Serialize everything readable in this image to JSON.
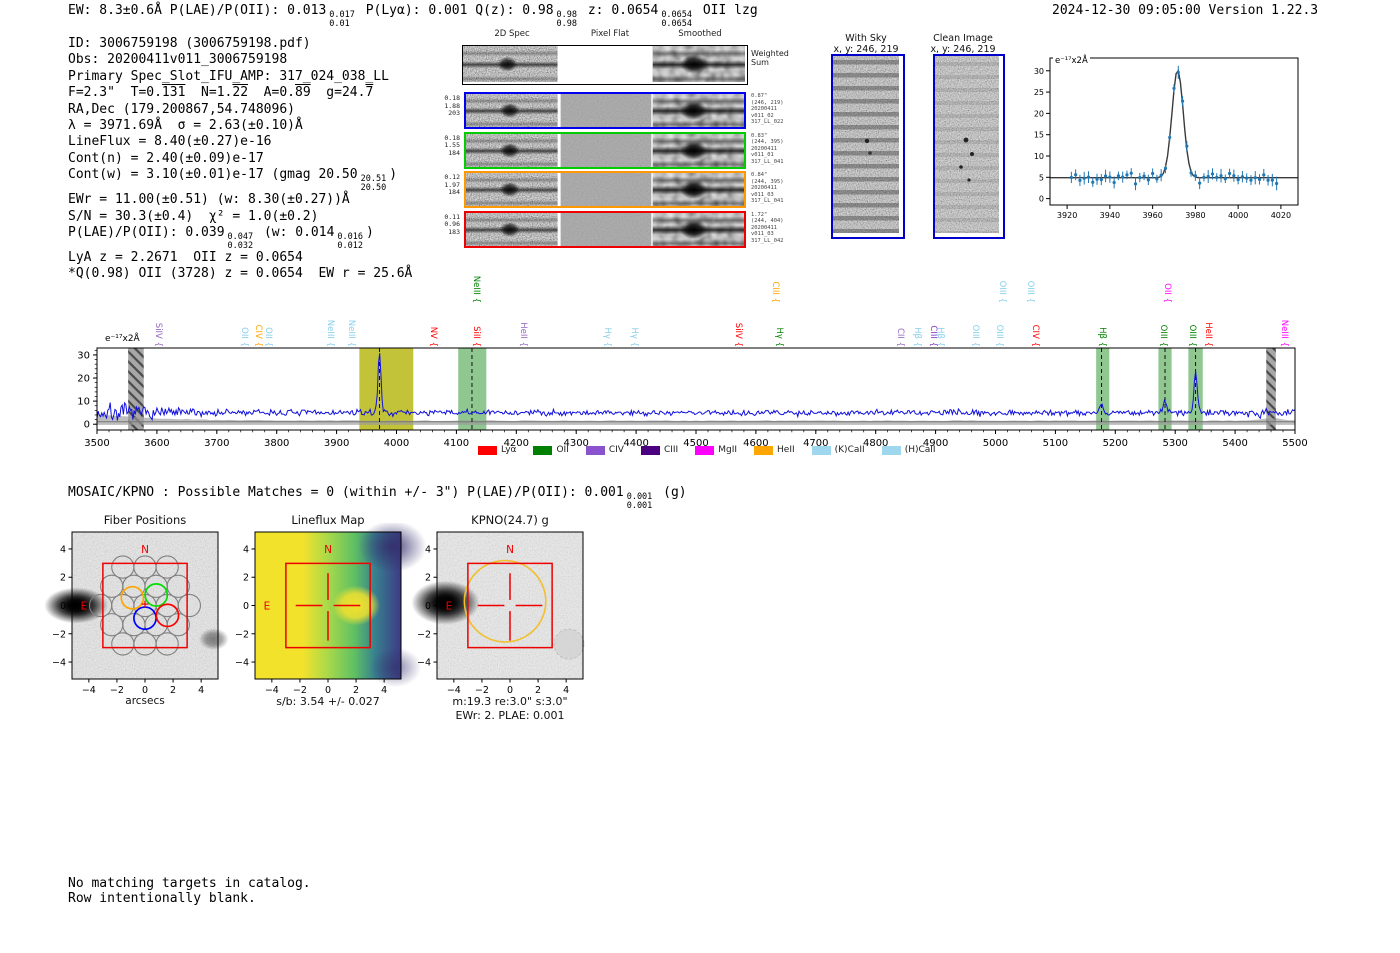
{
  "header": {
    "segments": [
      {
        "t": "EW: 8.3±0.6Å  P(LAE)/P(OII): 0.013"
      },
      {
        "sup": "0.017",
        "sub": "0.01"
      },
      {
        "t": " P(Lyα): 0.001  Q(z): 0.98"
      },
      {
        "sup": "0.98",
        "sub": "0.98"
      },
      {
        "t": " z: 0.0654"
      },
      {
        "sup": "0.0654",
        "sub": "0.0654"
      },
      {
        "t": " OII   lzg"
      }
    ],
    "datetime_version": "2024-12-30 09:05:00  Version 1.22.3"
  },
  "info_lines": [
    [
      {
        "t": "ID: 3006759198 (3006759198.pdf)"
      }
    ],
    [
      {
        "t": "Obs: 20200411v011_3006759198"
      }
    ],
    [
      {
        "t": "Primary Spec_Slot_IFU_AMP: 317_024_038_LL"
      }
    ],
    [
      {
        "t": "F=2.3\"  T=0."
      },
      {
        "ov": "131"
      },
      {
        "t": "  N=1."
      },
      {
        "ov": "22"
      },
      {
        "t": "  A=0."
      },
      {
        "ov": "89"
      },
      {
        "t": "  g=24."
      },
      {
        "ov": "7"
      }
    ],
    [
      {
        "t": "RA,Dec (179.200867,54.748096)"
      }
    ],
    [
      {
        "t": "λ = 3971.69Å  σ = 2.63(±0.10)Å"
      }
    ],
    [
      {
        "t": "LineFlux = 8.40(±0.27)e-16"
      }
    ],
    [
      {
        "t": "Cont(n) = 2.40(±0.09)e-17"
      }
    ],
    [
      {
        "t": "Cont(w) = 3.10(±0.01)e-17 (gmag 20.50"
      },
      {
        "sup": "20.51",
        "sub": "20.50"
      },
      {
        "t": ")"
      }
    ],
    [
      {
        "t": "EWr = 11.00(±0.51) (w: 8.30(±0.27))Å"
      }
    ],
    [
      {
        "t": "S/N = 30.3(±0.4)  χ² = 1.0(±0.2)"
      }
    ],
    [
      {
        "t": "P(LAE)/P(OII): 0.039"
      },
      {
        "sup": "0.047",
        "sub": "0.032"
      },
      {
        "t": " (w: 0.014"
      },
      {
        "sup": "0.016",
        "sub": "0.012"
      },
      {
        "t": ")"
      }
    ],
    [
      {
        "t": "LyA z = 2.2671  OII z = 0.0654"
      }
    ],
    [
      {
        "t": "*Q(0.98) OII (3728) z = 0.0654  EW r = 25.6Å"
      }
    ]
  ],
  "spec2d": {
    "col_titles": [
      "2D Spec",
      "Pixel Flat",
      "Smoothed"
    ],
    "weighted_label": "Weighted\nSum",
    "rows": [
      {
        "border": "#000000",
        "left": [],
        "right": []
      },
      {
        "border": "#0000ee",
        "left": [
          "0.18",
          "1.88",
          "203"
        ],
        "right": [
          "0.87\"",
          "(246, 219)",
          "20200411",
          "v011_02",
          "317_LL_022"
        ]
      },
      {
        "border": "#00cc00",
        "left": [
          "0.18",
          "1.55",
          "184"
        ],
        "right": [
          "0.83\"",
          "(244, 395)",
          "20200411",
          "v011_01",
          "317_LL_041"
        ]
      },
      {
        "border": "#ff9800",
        "left": [
          "0.12",
          "1.97",
          "184"
        ],
        "right": [
          "0.84\"",
          "(244, 395)",
          "20200411",
          "v011_03",
          "317_LL_041"
        ]
      },
      {
        "border": "#ee0000",
        "left": [
          "0.11",
          "0.96",
          "183"
        ],
        "right": [
          "1.72\"",
          "(244, 404)",
          "20200411",
          "v011_03",
          "317_LL_042"
        ]
      }
    ]
  },
  "cutouts": {
    "with_sky": {
      "title": "With Sky",
      "coords": "x, y: 246, 219"
    },
    "clean": {
      "title": "Clean Image",
      "coords": "x, y: 246, 219"
    }
  },
  "mosaic_line": [
    {
      "t": "MOSAIC/KPNO : Possible Matches = 0 (within +/- 3\")  P(LAE)/P(OII): 0.001"
    },
    {
      "sup": "0.001",
      "sub": "0.001"
    },
    {
      "t": " (g)"
    }
  ],
  "compass": {
    "n": "N",
    "e": "E"
  },
  "footer_lines": [
    "No matching targets in catalog.",
    "Row intentionally blank."
  ],
  "chart_data": [
    {
      "id": "line_fit_inset",
      "type": "scatter",
      "annotation": "e⁻¹⁷x2Å",
      "x_range": [
        3912,
        4028
      ],
      "xticks": [
        3920,
        3940,
        3960,
        3980,
        4000,
        4020
      ],
      "ylim": [
        -1.5,
        33
      ],
      "yticks": [
        0,
        5,
        10,
        15,
        20,
        25,
        30
      ],
      "baseline": 4.9,
      "gaussian": {
        "center": 3971.69,
        "sigma": 2.63,
        "amplitude": 25.3
      },
      "point_step": 2,
      "point_color": "#1f77b4",
      "fit_color": "#3a3a3a"
    },
    {
      "id": "full_spectrum",
      "type": "line",
      "annotation": "e⁻¹⁷x2Å",
      "x_range": [
        3500,
        5500
      ],
      "xticks": [
        3500,
        3600,
        3700,
        3800,
        3900,
        4000,
        4100,
        4200,
        4300,
        4400,
        4500,
        4600,
        4700,
        4800,
        4900,
        5000,
        5100,
        5200,
        5300,
        5400,
        5500
      ],
      "ylim": [
        -2.5,
        33
      ],
      "yticks": [
        0,
        10,
        20,
        30
      ],
      "line_color": "#1010dd",
      "baseline": 5.0,
      "peaks": [
        {
          "x": 3971.69,
          "sigma": 2.63,
          "amp": 25.3
        },
        {
          "x": 5177,
          "sigma": 2.8,
          "amp": 3.5
        },
        {
          "x": 5283,
          "sigma": 2.8,
          "amp": 5.0
        },
        {
          "x": 5334,
          "sigma": 2.8,
          "amp": 17.0
        }
      ],
      "bands": [
        {
          "x0": 3938,
          "x1": 4028,
          "color": "#b8b816",
          "opacity": 0.85,
          "dash": 3971.69
        },
        {
          "x0": 4103,
          "x1": 4150,
          "color": "#46a046",
          "opacity": 0.6,
          "dash": 4126
        },
        {
          "x0": 5168,
          "x1": 5190,
          "color": "#46a046",
          "opacity": 0.6,
          "dash": 5177
        },
        {
          "x0": 5272,
          "x1": 5294,
          "color": "#46a046",
          "opacity": 0.6,
          "dash": 5283
        },
        {
          "x0": 5322,
          "x1": 5346,
          "color": "#46a046",
          "opacity": 0.6,
          "dash": 5334
        }
      ],
      "hatched_bands": [
        {
          "x0": 3552,
          "x1": 3578
        },
        {
          "x0": 5452,
          "x1": 5468
        }
      ],
      "line_labels": [
        {
          "name": "SiIV",
          "x": 3602,
          "color": "#9467bd",
          "row": 0
        },
        {
          "name": "OII",
          "x": 3747,
          "color": "#87ceeb",
          "row": 0
        },
        {
          "name": "CIV",
          "x": 3769,
          "color": "#ffa500",
          "row": 0
        },
        {
          "name": "OII",
          "x": 3787,
          "color": "#87ceeb",
          "row": 0
        },
        {
          "name": "NeIII",
          "x": 3889,
          "color": "#87ceeb",
          "row": 0
        },
        {
          "name": "NeIII",
          "x": 3925,
          "color": "#87ceeb",
          "row": 0
        },
        {
          "name": "NV",
          "x": 4062,
          "color": "#ff0000",
          "row": 0
        },
        {
          "name": "NeIII",
          "x": 4133,
          "color": "#008000",
          "row": 1
        },
        {
          "name": "SiII",
          "x": 4133,
          "color": "#ff0000",
          "row": 0
        },
        {
          "name": "HeII",
          "x": 4212,
          "color": "#9467bd",
          "row": 0
        },
        {
          "name": "Hγ",
          "x": 4352,
          "color": "#87ceeb",
          "row": 0
        },
        {
          "name": "Hγ",
          "x": 4398,
          "color": "#87ceeb",
          "row": 0
        },
        {
          "name": "SiIV",
          "x": 4571,
          "color": "#ff0000",
          "row": 0
        },
        {
          "name": "CIII",
          "x": 4633,
          "color": "#ffa500",
          "row": 1
        },
        {
          "name": "Hγ",
          "x": 4640,
          "color": "#008000",
          "row": 0
        },
        {
          "name": "CII",
          "x": 4841,
          "color": "#9467bd",
          "row": 0
        },
        {
          "name": "Hβ",
          "x": 4869,
          "color": "#87ceeb",
          "row": 0
        },
        {
          "name": "CIII",
          "x": 4896,
          "color": "#8333c4",
          "row": 0
        },
        {
          "name": "Hβ",
          "x": 4908,
          "color": "#87ceeb",
          "row": 0
        },
        {
          "name": "OIII",
          "x": 4966,
          "color": "#87ceeb",
          "row": 0
        },
        {
          "name": "OIII",
          "x": 5007,
          "color": "#87ceeb",
          "row": 0
        },
        {
          "name": "OIII",
          "x": 5011,
          "color": "#87ceeb",
          "row": 1
        },
        {
          "name": "OIII",
          "x": 5058,
          "color": "#87ceeb",
          "row": 1
        },
        {
          "name": "CIV",
          "x": 5066,
          "color": "#ff0000",
          "row": 0
        },
        {
          "name": "Hβ",
          "x": 5178,
          "color": "#008000",
          "row": 0
        },
        {
          "name": "OIII",
          "x": 5281,
          "color": "#008000",
          "row": 0
        },
        {
          "name": "OII",
          "x": 5287,
          "color": "#ff00ff",
          "row": 1
        },
        {
          "name": "OIII",
          "x": 5329,
          "color": "#008000",
          "row": 0
        },
        {
          "name": "HeII",
          "x": 5355,
          "color": "#ff0000",
          "row": 0
        },
        {
          "name": "NeIII",
          "x": 5483,
          "color": "#ff00ff",
          "row": 0
        }
      ],
      "legend": [
        {
          "label": "Lyα",
          "color": "#ff0000"
        },
        {
          "label": "OII",
          "color": "#008000"
        },
        {
          "label": "CIV",
          "color": "#8a52cc"
        },
        {
          "label": "CIII",
          "color": "#4b0082"
        },
        {
          "label": "MgII",
          "color": "#ff00ff"
        },
        {
          "label": "HeII",
          "color": "#ffa500"
        },
        {
          "label": "(K)CaII",
          "color": "#9fd7ef"
        },
        {
          "label": "(H)CaII",
          "color": "#9fd7ef"
        }
      ]
    },
    {
      "id": "fiber_positions",
      "type": "scatter",
      "title": "Fiber Positions",
      "xlabel": "arcsecs",
      "xticks": [
        -4,
        -2,
        0,
        2,
        4
      ],
      "yticks": [
        -4,
        -2,
        0,
        2,
        4
      ],
      "fiber_radius_arcsec": 0.79,
      "colored_fibers": [
        {
          "color": "#ffa500",
          "x": -0.9,
          "y": 0.55
        },
        {
          "color": "#00dd00",
          "x": 0.8,
          "y": 0.75
        },
        {
          "color": "#0000ff",
          "x": 0.0,
          "y": -0.9
        },
        {
          "color": "#ff0000",
          "x": 1.6,
          "y": -0.7
        }
      ],
      "box_arcsec": 3
    },
    {
      "id": "lineflux_map",
      "type": "heatmap",
      "title": "Lineflux Map",
      "caption": "s/b: 3.54 +/- 0.027",
      "xticks": [
        -4,
        -2,
        0,
        2,
        4
      ],
      "yticks": [
        -4,
        -2,
        0,
        2,
        4
      ],
      "colormap": "viridis",
      "box_arcsec": 3
    },
    {
      "id": "kpno_g",
      "type": "heatmap",
      "title": "KPNO(24.7) g",
      "captions": [
        "m:19.3 re:3.0\" s:3.0\"",
        "EWr: 2. PLAE: 0.001"
      ],
      "xticks": [
        -4,
        -2,
        0,
        2,
        4
      ],
      "yticks": [
        -4,
        -2,
        0,
        2,
        4
      ],
      "aperture_radius_arcsec": 3.0,
      "box_arcsec": 3
    }
  ]
}
